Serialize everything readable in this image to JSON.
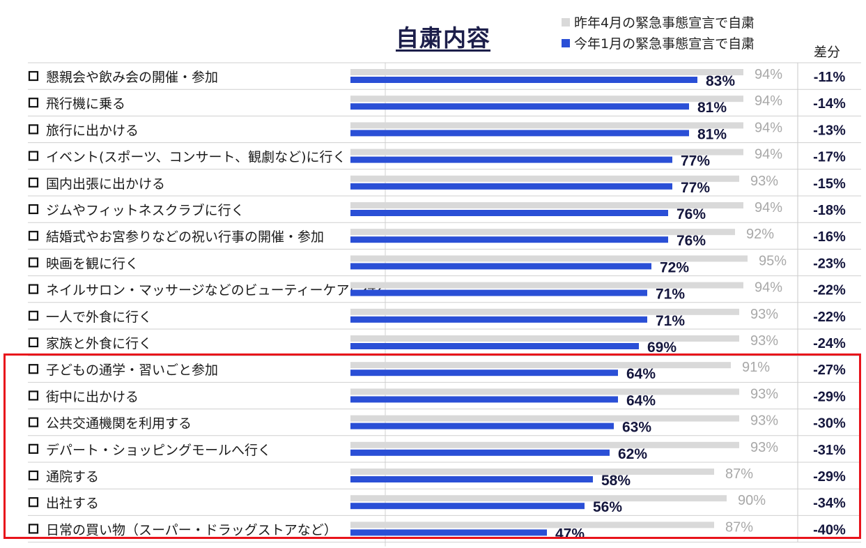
{
  "chart_data": {
    "type": "bar",
    "title": "自粛内容",
    "orientation": "horizontal",
    "xlim": [
      0,
      100
    ],
    "legend_position": "top-right",
    "diff_header": "差分",
    "series": [
      {
        "name": "昨年4月の緊急事態宣言で自粛",
        "color": "#d9d9d9",
        "values": [
          94,
          94,
          94,
          94,
          93,
          94,
          92,
          95,
          94,
          93,
          93,
          91,
          93,
          93,
          93,
          87,
          90,
          87
        ],
        "labels": [
          "94%",
          "94%",
          "94%",
          "94%",
          "93%",
          "94%",
          "92%",
          "95%",
          "94%",
          "93%",
          "93%",
          "91%",
          "93%",
          "93%",
          "93%",
          "87%",
          "90%",
          "87%"
        ]
      },
      {
        "name": "今年1月の緊急事態宣言で自粛",
        "color": "#2a4fd6",
        "values": [
          83,
          81,
          81,
          77,
          77,
          76,
          76,
          72,
          71,
          71,
          69,
          64,
          64,
          63,
          62,
          58,
          56,
          47
        ],
        "labels": [
          "83%",
          "81%",
          "81%",
          "77%",
          "77%",
          "76%",
          "76%",
          "72%",
          "71%",
          "71%",
          "69%",
          "64%",
          "64%",
          "63%",
          "62%",
          "58%",
          "56%",
          "47%"
        ]
      }
    ],
    "categories": [
      "懇親会や飲み会の開催・参加",
      "飛行機に乗る",
      "旅行に出かける",
      "イベント(スポーツ、コンサート、観劇など)に行く",
      "国内出張に出かける",
      "ジムやフィットネスクラブに行く",
      "結婚式やお宮参りなどの祝い行事の開催・参加",
      "映画を観に行く",
      "ネイルサロン・マッサージなどのビューティーケアに行く",
      "一人で外食に行く",
      "家族と外食に行く",
      "子どもの通学・習いごと参加",
      "街中に出かける",
      "公共交通機関を利用する",
      "デパート・ショッピングモールへ行く",
      "通院する",
      "出社する",
      "日常の買い物（スーパー・ドラッグストアなど）"
    ],
    "diffs": [
      "-11%",
      "-14%",
      "-13%",
      "-17%",
      "-15%",
      "-18%",
      "-16%",
      "-23%",
      "-22%",
      "-22%",
      "-24%",
      "-27%",
      "-29%",
      "-30%",
      "-31%",
      "-29%",
      "-34%",
      "-40%"
    ],
    "highlight_rows": [
      11,
      17
    ]
  }
}
